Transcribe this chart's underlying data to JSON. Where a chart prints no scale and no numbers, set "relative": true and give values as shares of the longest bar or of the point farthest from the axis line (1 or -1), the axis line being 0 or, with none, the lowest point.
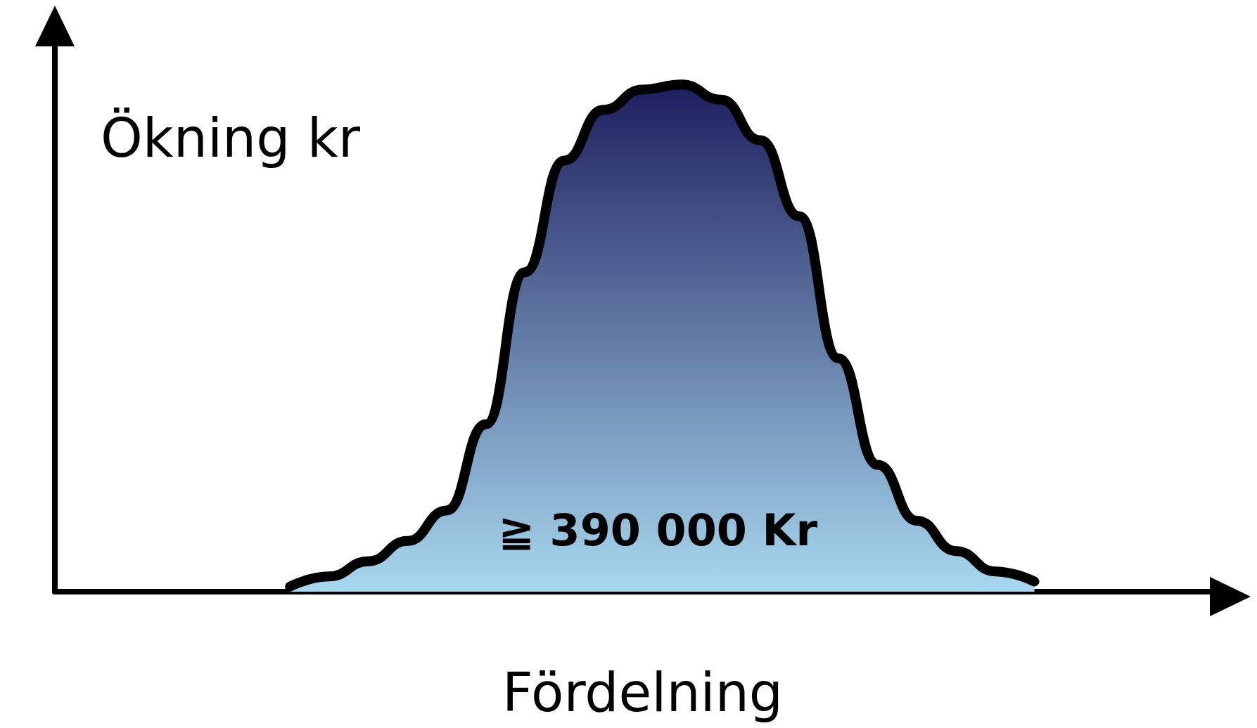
{
  "chart_data": {
    "type": "area",
    "relative": true,
    "ylabel": "Ökning kr",
    "xlabel": "Fördelning",
    "annotations": [
      "≧ 390 000 Kr"
    ],
    "categories": [
      null,
      null,
      null,
      null,
      null,
      null,
      null,
      null,
      null,
      null,
      null,
      null,
      null,
      null,
      null,
      null,
      null,
      null,
      null,
      null,
      null,
      null,
      null,
      null,
      null,
      null,
      null,
      null,
      null,
      null,
      null
    ],
    "series": [
      {
        "color": "#1e1f5e",
        "values": [
          null,
          null,
          null,
          null,
          null,
          null,
          0.01,
          0.03,
          0.06,
          0.1,
          0.16,
          0.33,
          0.63,
          0.85,
          0.95,
          0.99,
          1,
          0.97,
          0.89,
          0.74,
          0.46,
          0.25,
          0.14,
          0.08,
          0.04,
          0.02,
          null,
          null,
          null,
          null,
          null
        ]
      }
    ],
    "grid": false
  }
}
